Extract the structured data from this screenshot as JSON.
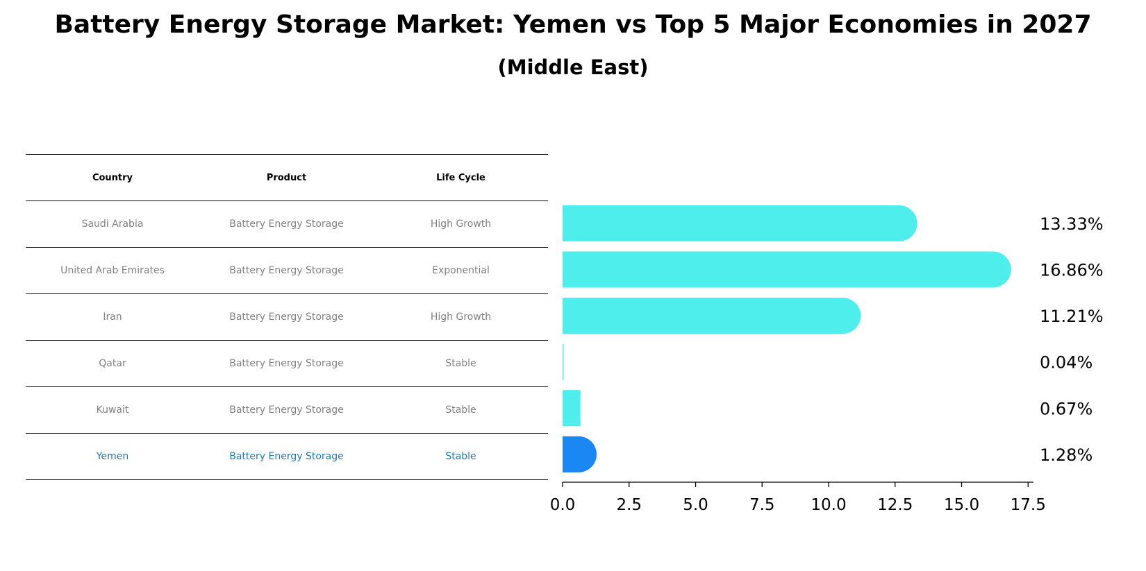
{
  "header": {
    "title": "Battery Energy Storage Market: Yemen vs Top 5 Major Economies in 2027",
    "subtitle": "(Middle East)"
  },
  "table": {
    "columns": [
      "Country",
      "Product",
      "Life Cycle"
    ],
    "rows": [
      {
        "country": "Saudi Arabia",
        "product": "Battery Energy Storage",
        "life_cycle": "High Growth",
        "highlight": false
      },
      {
        "country": "United Arab Emirates",
        "product": "Battery Energy Storage",
        "life_cycle": "Exponential",
        "highlight": false
      },
      {
        "country": "Iran",
        "product": "Battery Energy Storage",
        "life_cycle": "High Growth",
        "highlight": false
      },
      {
        "country": "Qatar",
        "product": "Battery Energy Storage",
        "life_cycle": "Stable",
        "highlight": false
      },
      {
        "country": "Kuwait",
        "product": "Battery Energy Storage",
        "life_cycle": "Stable",
        "highlight": false
      },
      {
        "country": "Yemen",
        "product": "Battery Energy Storage",
        "life_cycle": "Stable",
        "highlight": true
      }
    ]
  },
  "chart_data": {
    "type": "bar",
    "orientation": "horizontal",
    "title": "Battery Energy Storage Market: Yemen vs Top 5 Major Economies in 2027",
    "subtitle": "(Middle East)",
    "xlabel": "",
    "ylabel": "",
    "categories": [
      "Saudi Arabia",
      "United Arab Emirates",
      "Iran",
      "Qatar",
      "Kuwait",
      "Yemen"
    ],
    "values": [
      13.33,
      16.86,
      11.21,
      0.04,
      0.67,
      1.28
    ],
    "value_labels": [
      "13.33%",
      "16.86%",
      "11.21%",
      "0.04%",
      "0.67%",
      "1.28%"
    ],
    "highlight_index": 5,
    "xlim": [
      0,
      17.7
    ],
    "xticks": [
      0.0,
      2.5,
      5.0,
      7.5,
      10.0,
      12.5,
      15.0,
      17.5
    ],
    "xtick_labels": [
      "0.0",
      "2.5",
      "5.0",
      "7.5",
      "10.0",
      "12.5",
      "15.0",
      "17.5"
    ],
    "grid": false,
    "colors": {
      "default": "#4eeeed",
      "highlight": "#1a87f2"
    }
  }
}
